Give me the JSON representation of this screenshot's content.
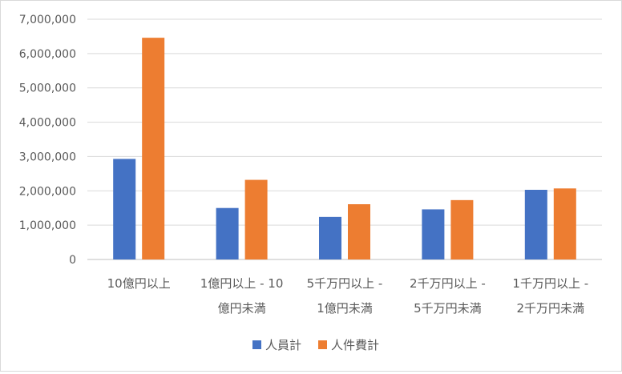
{
  "chart_data": {
    "type": "bar",
    "categories": [
      [
        "10億円以上"
      ],
      [
        "1億円以上 - 10",
        "億円未満"
      ],
      [
        "5千万円以上 -",
        "1億円未満"
      ],
      [
        "2千万円以上 -",
        "5千万円未満"
      ],
      [
        "1千万円以上 -",
        "2千万円未満"
      ]
    ],
    "series": [
      {
        "name": "人員計",
        "color": "#4472c4",
        "values": [
          2930000,
          1500000,
          1240000,
          1460000,
          2030000
        ]
      },
      {
        "name": "人件費計",
        "color": "#ed7d31",
        "values": [
          6460000,
          2320000,
          1610000,
          1730000,
          2070000
        ]
      }
    ],
    "yticks": [
      "0",
      "1,000,000",
      "2,000,000",
      "3,000,000",
      "4,000,000",
      "5,000,000",
      "6,000,000",
      "7,000,000"
    ],
    "ylim": [
      0,
      7000000
    ],
    "ystep": 1000000,
    "grid": true,
    "legend_position": "bottom",
    "title": "",
    "xlabel": "",
    "ylabel": ""
  }
}
